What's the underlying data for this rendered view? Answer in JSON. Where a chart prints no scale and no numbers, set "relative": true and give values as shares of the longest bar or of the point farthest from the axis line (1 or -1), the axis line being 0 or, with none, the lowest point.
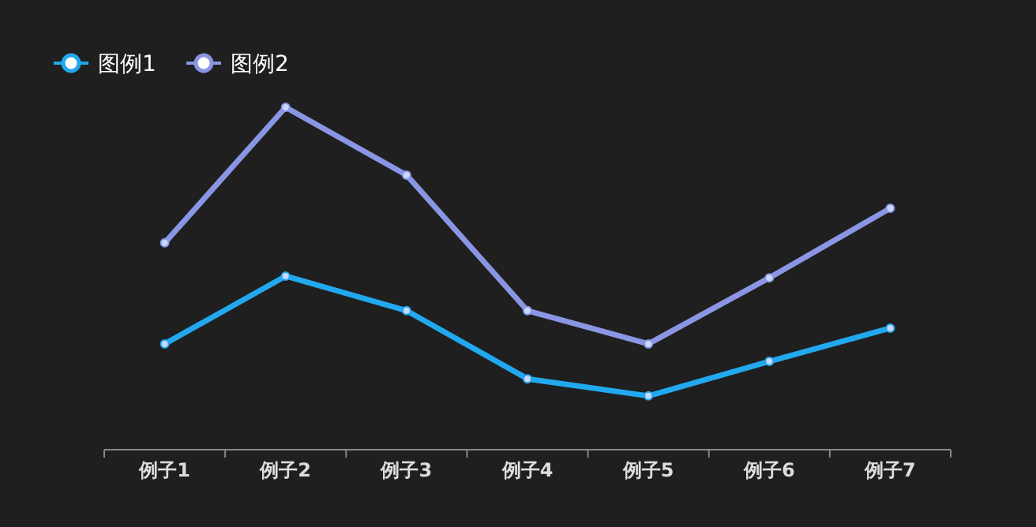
{
  "chart_data": {
    "type": "line",
    "relative": true,
    "categories": [
      "例子1",
      "例子2",
      "例子3",
      "例子4",
      "例子5",
      "例子6",
      "例子7"
    ],
    "series": [
      {
        "name": "图例1",
        "color": "#22a8ee",
        "values": [
          0.309,
          0.507,
          0.406,
          0.207,
          0.157,
          0.258,
          0.355
        ]
      },
      {
        "name": "图例2",
        "color": "#8a96e4",
        "values": [
          0.604,
          1,
          0.802,
          0.406,
          0.309,
          0.502,
          0.705
        ]
      }
    ],
    "legend": "top left",
    "marker": "circle",
    "line_style": "solid",
    "grid": false
  }
}
